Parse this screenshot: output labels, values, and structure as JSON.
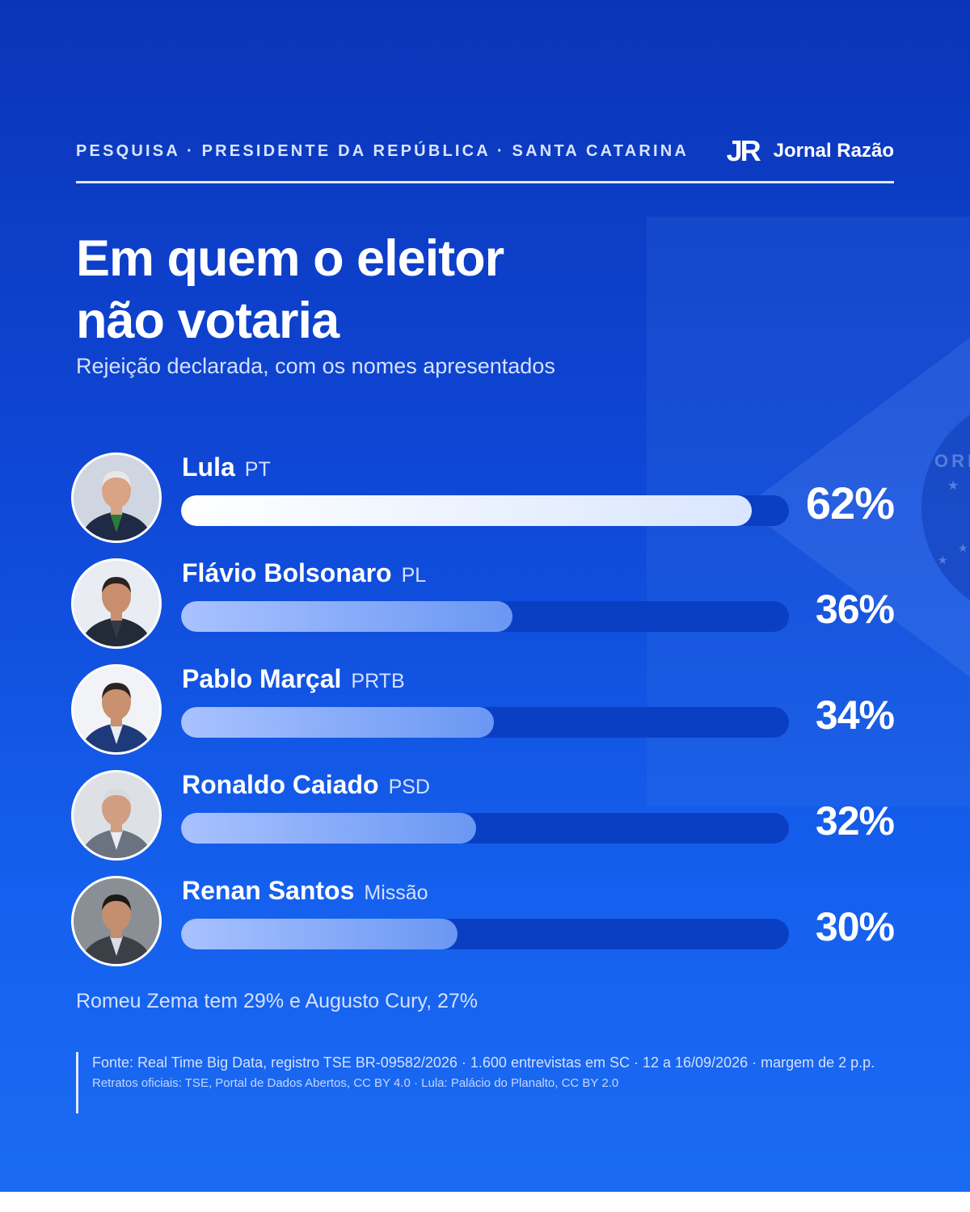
{
  "header": {
    "kicker": "PESQUISA · PRESIDENTE DA REPÚBLICA · SANTA CATARINA",
    "brand_mark": "JR",
    "brand_name": "Jornal Razão"
  },
  "title_line1": "Em quem o eleitor",
  "title_line2": "não votaria",
  "subtitle": "Rejeição declarada, com os nomes apresentados",
  "colors": {
    "background": "#0f47d6",
    "bar_track": "#0a3fc4",
    "bar_fill": "#7aa3f5",
    "bar_fill_lead": "#ffffff",
    "text": "#ffffff"
  },
  "chart_data": {
    "type": "bar",
    "orientation": "horizontal",
    "xlim": [
      0,
      66
    ],
    "grid": false,
    "categories": [
      "Lula",
      "Flávio Bolsonaro",
      "Pablo Marçal",
      "Ronaldo Caiado",
      "Renan Santos"
    ],
    "parties": [
      "PT",
      "PL",
      "PRTB",
      "PSD",
      "Missão"
    ],
    "values": [
      62,
      36,
      34,
      32,
      30
    ],
    "value_labels": [
      "62%",
      "36%",
      "34%",
      "32%",
      "30%"
    ]
  },
  "note": "Romeu Zema tem 29% e Augusto Cury, 27%",
  "source_line1": "Fonte: Real Time Big Data, registro TSE BR-09582/2026 · 1.600 entrevistas em SC · 12 a 16/09/2026 · margem de 2 p.p.",
  "source_line2": "Retratos oficiais: TSE, Portal de Dados Abertos, CC BY 4.0 · Lula: Palácio do Planalto, CC BY 2.0"
}
